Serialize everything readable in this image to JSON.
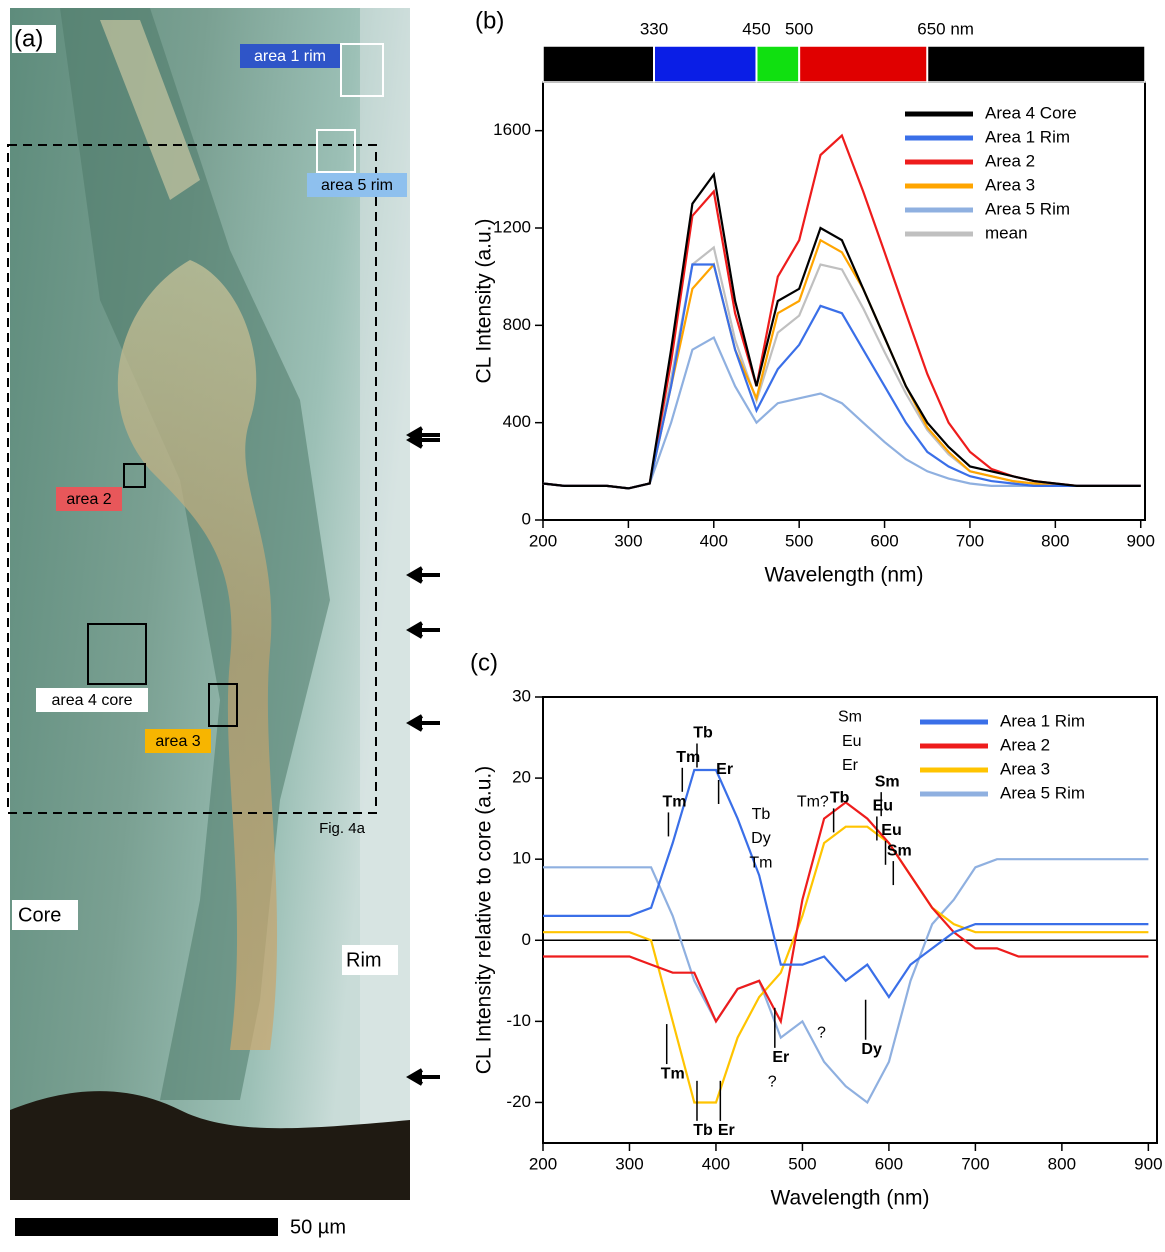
{
  "image_panel": {
    "panel_label": "(a)",
    "area_labels": [
      "area 1 rim",
      "area 5 rim",
      "area 2",
      "area 4 core",
      "area 3"
    ],
    "figure_ref": "Fig. 4a",
    "core_label": "Core",
    "rim_label": "Rim",
    "scale_bar_label": "50 µm"
  },
  "chart_data": [
    {
      "type": "line",
      "panel_label": "(b)",
      "x_label": "Wavelength (nm)",
      "y_label": "CL Intensity (a.u.)",
      "xlim": [
        200,
        905
      ],
      "ylim": [
        0,
        1800
      ],
      "xticks": [
        200,
        300,
        400,
        500,
        600,
        700,
        800,
        900
      ],
      "yticks": [
        0,
        400,
        800,
        1200,
        1600
      ],
      "legend": "upper right",
      "color_bands": [
        {
          "start": 200,
          "end": 330,
          "color": "#000000"
        },
        {
          "start": 330,
          "end": 450,
          "color": "#0a1ee6"
        },
        {
          "start": 450,
          "end": 500,
          "color": "#10e010"
        },
        {
          "start": 500,
          "end": 650,
          "color": "#e00000"
        },
        {
          "start": 650,
          "end": 905,
          "color": "#000000"
        }
      ],
      "band_ticks": [
        330,
        450,
        500,
        {
          "value": 650,
          "label": "650 nm"
        }
      ],
      "x": [
        200,
        225,
        250,
        275,
        300,
        325,
        350,
        375,
        400,
        425,
        450,
        475,
        500,
        525,
        550,
        575,
        600,
        625,
        650,
        675,
        700,
        725,
        750,
        775,
        800,
        825,
        850,
        875,
        900
      ],
      "series": [
        {
          "name": "mean",
          "color": "#c0c0c0",
          "values": [
            150,
            140,
            140,
            140,
            130,
            150,
            580,
            1050,
            1120,
            740,
            490,
            770,
            840,
            1050,
            1030,
            870,
            690,
            520,
            370,
            270,
            200,
            180,
            160,
            150,
            145,
            140,
            140,
            140,
            140
          ]
        },
        {
          "name": "Area 5 Rim",
          "color": "#8fb0e0",
          "values": [
            150,
            140,
            140,
            140,
            130,
            150,
            400,
            700,
            750,
            550,
            400,
            480,
            500,
            520,
            480,
            400,
            320,
            250,
            200,
            170,
            150,
            140,
            140,
            140,
            140,
            140,
            140,
            140,
            140
          ]
        },
        {
          "name": "Area 3",
          "color": "#ffa500",
          "values": [
            150,
            140,
            140,
            140,
            130,
            150,
            550,
            950,
            1050,
            700,
            500,
            850,
            900,
            1150,
            1100,
            950,
            750,
            550,
            380,
            280,
            200,
            180,
            160,
            150,
            140,
            140,
            140,
            140,
            140
          ]
        },
        {
          "name": "Area 2",
          "color": "#ee1c1c",
          "values": [
            150,
            140,
            140,
            140,
            130,
            150,
            650,
            1250,
            1350,
            850,
            550,
            1000,
            1150,
            1500,
            1580,
            1350,
            1100,
            850,
            600,
            400,
            280,
            210,
            180,
            160,
            150,
            140,
            140,
            140,
            140
          ]
        },
        {
          "name": "Area 1 Rim",
          "color": "#3a6fe8",
          "values": [
            150,
            140,
            140,
            140,
            130,
            150,
            550,
            1050,
            1050,
            700,
            450,
            620,
            720,
            880,
            850,
            700,
            550,
            400,
            280,
            220,
            180,
            160,
            150,
            140,
            140,
            140,
            140,
            140,
            140
          ]
        },
        {
          "name": "Area 4 Core",
          "color": "#000000",
          "values": [
            150,
            140,
            140,
            140,
            130,
            150,
            700,
            1300,
            1420,
            900,
            550,
            900,
            950,
            1200,
            1150,
            950,
            750,
            550,
            400,
            300,
            220,
            200,
            180,
            160,
            150,
            140,
            140,
            140,
            140
          ]
        }
      ],
      "legend_order": [
        5,
        4,
        3,
        2,
        1,
        0
      ]
    },
    {
      "type": "line",
      "panel_label": "(c)",
      "x_label": "Wavelength (nm)",
      "y_label": "CL Intensity relative to core (a.u.)",
      "xlim": [
        200,
        910
      ],
      "ylim": [
        -25,
        30
      ],
      "xticks": [
        200,
        300,
        400,
        500,
        600,
        700,
        800,
        900
      ],
      "yticks": [
        -20,
        -10,
        0,
        10,
        20,
        30
      ],
      "legend": "upper right",
      "x": [
        200,
        225,
        250,
        275,
        300,
        325,
        350,
        375,
        400,
        425,
        450,
        475,
        500,
        525,
        550,
        575,
        600,
        625,
        650,
        675,
        700,
        725,
        750,
        775,
        800,
        825,
        850,
        875,
        900
      ],
      "series": [
        {
          "name": "Area 5 Rim",
          "color": "#8fb0e0",
          "values": [
            9,
            9,
            9,
            9,
            9,
            9,
            3,
            -5,
            -10,
            -6,
            -5,
            -12,
            -10,
            -15,
            -18,
            -20,
            -15,
            -5,
            2,
            5,
            9,
            10,
            10,
            10,
            10,
            10,
            10,
            10,
            10
          ]
        },
        {
          "name": "Area 3",
          "color": "#ffc400",
          "values": [
            1,
            1,
            1,
            1,
            1,
            0,
            -10,
            -20,
            -20,
            -12,
            -7,
            -4,
            3,
            12,
            14,
            14,
            12,
            8,
            4,
            2,
            1,
            1,
            1,
            1,
            1,
            1,
            1,
            1,
            1
          ]
        },
        {
          "name": "Area 2",
          "color": "#ee1c1c",
          "values": [
            -2,
            -2,
            -2,
            -2,
            -2,
            -3,
            -4,
            -4,
            -10,
            -6,
            -5,
            -10,
            5,
            15,
            17,
            15,
            12,
            8,
            4,
            1,
            -1,
            -1,
            -2,
            -2,
            -2,
            -2,
            -2,
            -2,
            -2
          ]
        },
        {
          "name": "Area 1 Rim",
          "color": "#3a6fe8",
          "values": [
            3,
            3,
            3,
            3,
            3,
            4,
            12,
            21,
            21,
            15,
            8,
            -3,
            -3,
            -2,
            -5,
            -3,
            -7,
            -3,
            -1,
            1,
            2,
            2,
            2,
            2,
            2,
            2,
            2,
            2,
            2
          ]
        }
      ],
      "legend_order": [
        3,
        2,
        1,
        0
      ],
      "annotations": [
        {
          "text": "Tm",
          "x": 352,
          "y": 17,
          "bold": true
        },
        {
          "text": "Tm",
          "x": 368,
          "y": 22.5,
          "bold": true
        },
        {
          "text": "Tb",
          "x": 385,
          "y": 25.5,
          "bold": true
        },
        {
          "text": "Er",
          "x": 410,
          "y": 21,
          "bold": true
        },
        {
          "text": "Tb",
          "x": 452,
          "y": 15.5,
          "bold": false
        },
        {
          "text": "Dy",
          "x": 452,
          "y": 12.5,
          "bold": false
        },
        {
          "text": "Tm",
          "x": 452,
          "y": 9.5,
          "bold": false
        },
        {
          "text": "Tm?",
          "x": 512,
          "y": 17,
          "bold": false
        },
        {
          "text": "Tb",
          "x": 543,
          "y": 17.5,
          "bold": true
        },
        {
          "text": "Sm",
          "x": 555,
          "y": 27.5,
          "bold": false
        },
        {
          "text": "Eu",
          "x": 557,
          "y": 24.5,
          "bold": false
        },
        {
          "text": "Er",
          "x": 555,
          "y": 21.5,
          "bold": false
        },
        {
          "text": "Sm",
          "x": 598,
          "y": 19.5,
          "bold": true
        },
        {
          "text": "Eu",
          "x": 593,
          "y": 16.5,
          "bold": true
        },
        {
          "text": "Eu",
          "x": 603,
          "y": 13.5,
          "bold": true
        },
        {
          "text": "Sm",
          "x": 612,
          "y": 11,
          "bold": true
        },
        {
          "text": "Tm",
          "x": 350,
          "y": -16.5,
          "bold": true
        },
        {
          "text": "Tb",
          "x": 385,
          "y": -23.5,
          "bold": true
        },
        {
          "text": "Er",
          "x": 412,
          "y": -23.5,
          "bold": true
        },
        {
          "text": "Er",
          "x": 475,
          "y": -14.5,
          "bold": true
        },
        {
          "text": "?",
          "x": 465,
          "y": -17.5,
          "bold": false
        },
        {
          "text": "?",
          "x": 522,
          "y": -11.5,
          "bold": false
        },
        {
          "text": "Dy",
          "x": 580,
          "y": -13.5,
          "bold": true
        }
      ]
    }
  ]
}
